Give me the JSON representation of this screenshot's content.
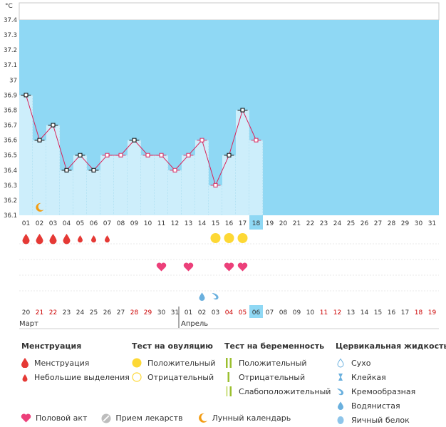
{
  "chart_data": {
    "type": "line",
    "unit_label": "°C",
    "ylim": [
      36.1,
      37.4
    ],
    "y_ticks": [
      "36.1",
      "36.2",
      "36.3",
      "36.4",
      "36.5",
      "36.6",
      "36.7",
      "36.8",
      "36.9",
      "37",
      "37.1",
      "37.2",
      "37.3",
      "37.4"
    ],
    "cycle_days": [
      "01",
      "02",
      "03",
      "04",
      "05",
      "06",
      "07",
      "08",
      "09",
      "10",
      "11",
      "12",
      "13",
      "14",
      "15",
      "16",
      "17",
      "18",
      "19",
      "20",
      "21",
      "22",
      "23",
      "24",
      "25",
      "26",
      "27",
      "28",
      "29",
      "30",
      "31"
    ],
    "today_index": 17,
    "calendar_dates": [
      "20",
      "21",
      "22",
      "23",
      "24",
      "25",
      "26",
      "27",
      "28",
      "29",
      "30",
      "31",
      "01",
      "02",
      "03",
      "04",
      "05",
      "06",
      "07",
      "08",
      "09",
      "10",
      "11",
      "12",
      "13",
      "14",
      "15",
      "16",
      "17",
      "18",
      "19"
    ],
    "weekend_dates_red": [
      false,
      true,
      true,
      false,
      false,
      false,
      false,
      false,
      true,
      true,
      false,
      false,
      false,
      false,
      false,
      true,
      true,
      false,
      false,
      false,
      false,
      false,
      true,
      true,
      false,
      false,
      false,
      false,
      false,
      true,
      true
    ],
    "month_labels": [
      "Март",
      "Апрель"
    ],
    "month_start_index": 12,
    "series": [
      {
        "values": [
          36.9,
          36.6,
          36.7,
          36.4,
          36.5,
          36.4,
          36.5,
          36.5,
          36.6,
          36.5,
          36.5,
          36.4,
          36.5,
          36.6,
          36.3,
          36.5,
          36.8,
          36.6
        ]
      }
    ],
    "marker_types": [
      "black",
      "black",
      "black",
      "black",
      "black",
      "black",
      "pink",
      "pink",
      "black",
      "pink",
      "pink",
      "pink",
      "pink",
      "pink",
      "pink",
      "black",
      "black",
      "pink"
    ],
    "menstruation": [
      "heavy",
      "heavy",
      "heavy",
      "heavy",
      "light",
      "light",
      "light"
    ],
    "ovulation_positive_days": [
      14,
      15,
      16
    ],
    "intercourse_days": [
      10,
      12,
      15,
      16
    ],
    "fluid_days": [
      {
        "day": 13,
        "type": "watery"
      },
      {
        "day": 14,
        "type": "creamy"
      }
    ],
    "moon_day": 1
  },
  "legend": {
    "menstruation": {
      "title": "Менструация",
      "items": [
        "Менструация",
        "Небольшие выделения"
      ]
    },
    "ovulation": {
      "title": "Тест на овуляцию",
      "items": [
        "Положительный",
        "Отрицательный"
      ]
    },
    "pregnancy": {
      "title": "Тест на беременность",
      "items": [
        "Положительный",
        "Отрицательный",
        "Слабоположительный"
      ]
    },
    "fluid": {
      "title": "Цервикальная жидкость",
      "items": [
        "Сухо",
        "Клейкая",
        "Кремообразная",
        "Водянистая",
        "Яичный белок"
      ]
    },
    "bottom": [
      "Половой акт",
      "Прием лекарств",
      "Лунный календарь"
    ]
  },
  "colors": {
    "plot_bg": "#8fd8f4",
    "bar_fill": "#cdeefb",
    "bar_line": "#9dd8ee",
    "line": "#d9245b",
    "today_bg": "#8fd8f4",
    "red": "#e53935",
    "pink": "#ec407a",
    "yellow": "#fdd835",
    "green": "#9bbf2f",
    "blue": "#6ab0de",
    "orange": "#f39c12",
    "weekend": "#cc0000"
  }
}
